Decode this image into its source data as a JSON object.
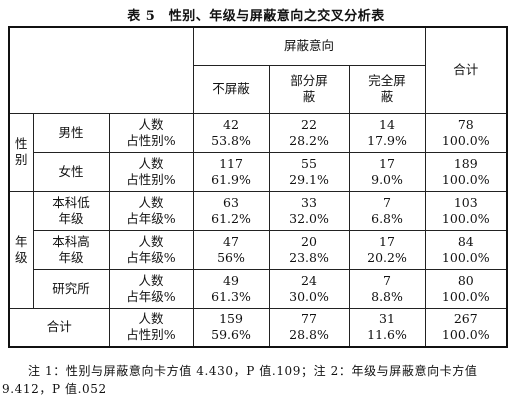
{
  "caption": "表 5　性别、年级与屏蔽意向之交叉分析表",
  "header": {
    "group": "屏蔽意向",
    "total": "合计",
    "cols": [
      "不屏蔽",
      "部分屏\n蔽",
      "完全屏\n蔽"
    ]
  },
  "measures": [
    "人数\n占性别%",
    "人数\n占年级%"
  ],
  "groups": [
    {
      "label": "性\n别",
      "rows": [
        {
          "name": "男性",
          "measure": "人数\n占性别%",
          "cells": [
            "42\n53.8%",
            "22\n28.2%",
            "14\n17.9%"
          ],
          "total": "78\n100.0%"
        },
        {
          "name": "女性",
          "measure": "人数\n占性别%",
          "cells": [
            "117\n61.9%",
            "55\n29.1%",
            "17\n9.0%"
          ],
          "total": "189\n100.0%"
        }
      ]
    },
    {
      "label": "年\n级",
      "rows": [
        {
          "name": "本科低\n年级",
          "measure": "人数\n占年级%",
          "cells": [
            "63\n61.2%",
            "33\n32.0%",
            "7\n6.8%"
          ],
          "total": "103\n100.0%"
        },
        {
          "name": "本科高\n年级",
          "measure": "人数\n占年级%",
          "cells": [
            "47\n56%",
            "20\n23.8%",
            "17\n20.2%"
          ],
          "total": "84\n100.0%"
        },
        {
          "name": "研究所",
          "measure": "人数\n占年级%",
          "cells": [
            "49\n61.3%",
            "24\n30.0%",
            "7\n8.8%"
          ],
          "total": "80\n100.0%"
        }
      ]
    }
  ],
  "total_row": {
    "name": "合计",
    "measure": "人数\n占性别%",
    "cells": [
      "159\n59.6%",
      "77\n28.8%",
      "31\n11.6%"
    ],
    "total": "267\n100.0%"
  },
  "note": {
    "line1": "注 1：性别与屏蔽意向卡方值 4.430，P 值.109；注 2：年级与屏蔽意向卡方值",
    "line2": "9.412，P 值.052"
  }
}
